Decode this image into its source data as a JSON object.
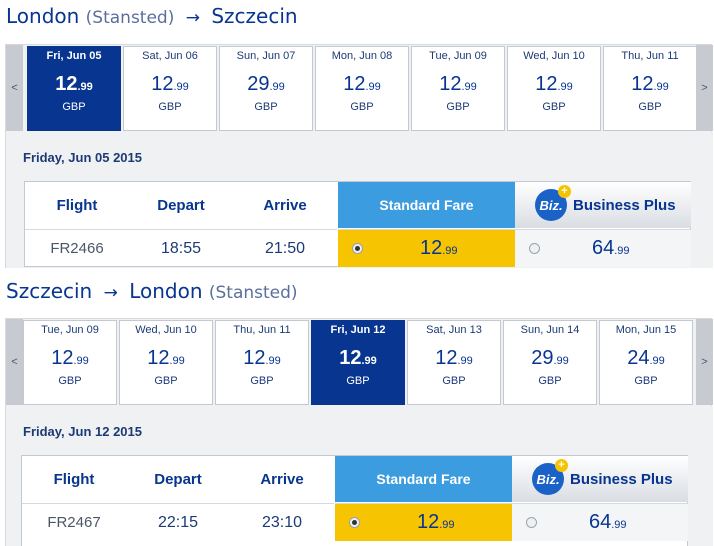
{
  "journeys": [
    {
      "title": {
        "from": "London",
        "from_sub": "(Stansted)",
        "arrow": "→",
        "to": "Szczecin"
      },
      "nav": {
        "prev": "<",
        "next": ">"
      },
      "days": [
        {
          "date": "Fri, Jun 05",
          "price_int": "12",
          "price_dec": ".99",
          "currency": "GBP",
          "selected": true
        },
        {
          "date": "Sat, Jun 06",
          "price_int": "12",
          "price_dec": ".99",
          "currency": "GBP",
          "selected": false
        },
        {
          "date": "Sun, Jun 07",
          "price_int": "29",
          "price_dec": ".99",
          "currency": "GBP",
          "selected": false
        },
        {
          "date": "Mon, Jun 08",
          "price_int": "12",
          "price_dec": ".99",
          "currency": "GBP",
          "selected": false
        },
        {
          "date": "Tue, Jun 09",
          "price_int": "12",
          "price_dec": ".99",
          "currency": "GBP",
          "selected": false
        },
        {
          "date": "Wed, Jun 10",
          "price_int": "12",
          "price_dec": ".99",
          "currency": "GBP",
          "selected": false
        },
        {
          "date": "Thu, Jun 11",
          "price_int": "12",
          "price_dec": ".99",
          "currency": "GBP",
          "selected": false
        }
      ],
      "selected_date": "Friday, Jun 05 2015",
      "table": {
        "headers": {
          "flight": "Flight",
          "depart": "Depart",
          "arrive": "Arrive",
          "standard": "Standard Fare",
          "business": "Business Plus",
          "biz_badge": "Biz.",
          "biz_plus": "+"
        },
        "row": {
          "flight": "FR2466",
          "depart": "18:55",
          "arrive": "21:50",
          "std_int": "12",
          "std_dec": ".99",
          "biz_int": "64",
          "biz_dec": ".99"
        }
      }
    },
    {
      "title": {
        "from": "Szczecin",
        "from_sub": "",
        "arrow": "→",
        "to": "London",
        "to_sub": "(Stansted)"
      },
      "nav": {
        "prev": "<",
        "next": ">"
      },
      "days": [
        {
          "date": "Tue, Jun 09",
          "price_int": "12",
          "price_dec": ".99",
          "currency": "GBP",
          "selected": false
        },
        {
          "date": "Wed, Jun 10",
          "price_int": "12",
          "price_dec": ".99",
          "currency": "GBP",
          "selected": false
        },
        {
          "date": "Thu, Jun 11",
          "price_int": "12",
          "price_dec": ".99",
          "currency": "GBP",
          "selected": false
        },
        {
          "date": "Fri, Jun 12",
          "price_int": "12",
          "price_dec": ".99",
          "currency": "GBP",
          "selected": true
        },
        {
          "date": "Sat, Jun 13",
          "price_int": "12",
          "price_dec": ".99",
          "currency": "GBP",
          "selected": false
        },
        {
          "date": "Sun, Jun 14",
          "price_int": "29",
          "price_dec": ".99",
          "currency": "GBP",
          "selected": false
        },
        {
          "date": "Mon, Jun 15",
          "price_int": "24",
          "price_dec": ".99",
          "currency": "GBP",
          "selected": false
        }
      ],
      "selected_date": "Friday, Jun 12 2015",
      "table": {
        "headers": {
          "flight": "Flight",
          "depart": "Depart",
          "arrive": "Arrive",
          "standard": "Standard Fare",
          "business": "Business Plus",
          "biz_badge": "Biz.",
          "biz_plus": "+"
        },
        "row": {
          "flight": "FR2467",
          "depart": "22:15",
          "arrive": "23:10",
          "std_int": "12",
          "std_dec": ".99",
          "biz_int": "64",
          "biz_dec": ".99"
        }
      }
    }
  ],
  "colors": {
    "brand_blue": "#073590",
    "standard_fare_bg": "#3c9ce0",
    "selected_fare": "#f6c400",
    "biz_badge": "#1a62c7"
  }
}
